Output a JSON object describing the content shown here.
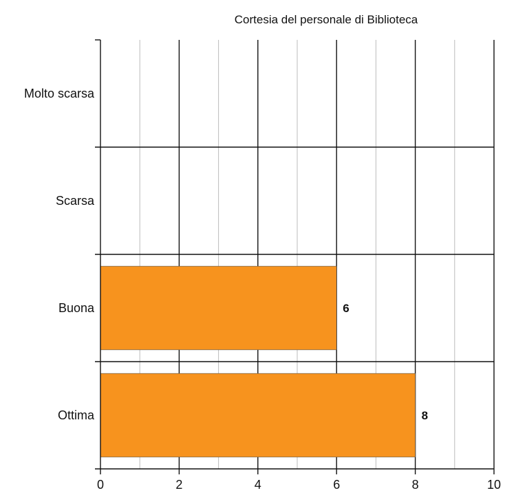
{
  "chart_data": {
    "type": "bar",
    "orientation": "horizontal",
    "title": "Cortesia del personale di Biblioteca",
    "xlabel": "",
    "ylabel": "",
    "categories": [
      "Molto scarsa",
      "Scarsa",
      "Buona",
      "Ottima"
    ],
    "values": [
      0,
      0,
      6,
      8
    ],
    "data_labels": [
      "",
      "",
      "6",
      "8"
    ],
    "xlim": [
      0,
      10
    ],
    "x_ticks": [
      "0",
      "2",
      "4",
      "6",
      "8",
      "10"
    ],
    "grid": true,
    "legend": "none",
    "bar_color": "#F7931E"
  }
}
